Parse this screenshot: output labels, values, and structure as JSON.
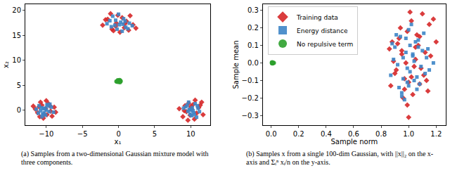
{
  "chart_data": [
    {
      "type": "scatter",
      "caption": "(a) Samples from a two-dimensional Gaussian mixture model with three components.",
      "x_label": "x₁",
      "y_label": "x₂",
      "xlim": [
        -12.9,
        12.7
      ],
      "ylim": [
        -3,
        21.2
      ],
      "xticks": [
        {
          "value": -10,
          "label": "−10"
        },
        {
          "value": -5,
          "label": "−5"
        },
        0,
        5,
        10
      ],
      "yticks": [
        0,
        5,
        10,
        15,
        20
      ],
      "grid": false,
      "series": [
        {
          "name": "Training data",
          "color": "#d62728",
          "marker": "diamond",
          "x": [
            -10.8,
            -9.5,
            -11.2,
            -10.1,
            -9.2,
            -10.6,
            -8.9,
            -11.5,
            -10.3,
            -9.7,
            -10.9,
            -9.4,
            -11.0,
            -10.0,
            -8.7,
            -10.4,
            -11.8,
            -9.9,
            -1.5,
            0.8,
            -0.3,
            1.6,
            -2.2,
            0.2,
            1.1,
            -0.9,
            2.0,
            -1.1,
            0.5,
            -0.4,
            1.4,
            -1.8,
            0.9,
            -0.1,
            2.4,
            -0.7,
            9.2,
            10.8,
            11.5,
            10.1,
            8.9,
            9.7,
            10.5,
            11.1,
            9.4,
            10.3,
            8.4,
            11.7,
            9.9,
            10.6,
            9.1,
            10.0,
            11.3,
            9.6
          ],
          "values": [
            1.6,
            0.9,
            -0.5,
            0.3,
            -1.2,
            1.0,
            0.6,
            0.2,
            -0.8,
            1.3,
            -1.3,
            -0.2,
            0.7,
            1.9,
            -0.4,
            -1.6,
            0.8,
            -0.9,
            18.2,
            16.5,
            17.4,
            18.9,
            17.0,
            15.6,
            17.8,
            16.2,
            17.1,
            19.3,
            18.5,
            16.8,
            16.0,
            18.1,
            17.3,
            19.0,
            16.4,
            15.9,
            0.9,
            -0.6,
            1.6,
            0.2,
            -1.3,
            1.4,
            -1.8,
            0.5,
            -0.3,
            1.1,
            0.3,
            -0.9,
            -1.0,
            2.0,
            -0.1,
            0.7,
            1.0,
            -2.0
          ]
        },
        {
          "name": "Energy distance",
          "color": "#3d85c6",
          "marker": "square",
          "x": [
            -10.2,
            -9.6,
            -11.0,
            -10.5,
            -9.3,
            -10.8,
            -9.9,
            -11.4,
            -10.1,
            -9.0,
            -10.7,
            -10.3,
            -9.5,
            -11.1,
            -10.0,
            -9.8,
            -10.6,
            -10.4,
            -0.5,
            0.3,
            1.0,
            -1.2,
            0.7,
            -0.2,
            1.5,
            -0.8,
            0.1,
            1.9,
            -1.6,
            0.5,
            -0.4,
            0.9,
            1.3,
            -1.0,
            0.0,
            0.6,
            9.8,
            10.4,
            9.3,
            10.9,
            10.1,
            9.6,
            11.2,
            10.6,
            9.0,
            10.2,
            9.9,
            10.8,
            9.5,
            10.3,
            11.0,
            9.7,
            10.5,
            10.0
          ],
          "values": [
            0.4,
            -0.3,
            0.9,
            -0.8,
            0.6,
            -0.1,
            1.1,
            0.2,
            -1.0,
            -0.4,
            0.5,
            -0.5,
            1.2,
            -0.6,
            0.0,
            0.8,
            -1.3,
            0.3,
            17.0,
            17.6,
            16.6,
            17.9,
            18.3,
            16.2,
            17.4,
            18.8,
            17.1,
            16.9,
            17.3,
            15.8,
            18.0,
            17.8,
            16.3,
            16.7,
            19.2,
            17.2,
            0.2,
            -0.5,
            0.7,
            0.9,
            -1.1,
            -0.2,
            -0.3,
            1.3,
            0.4,
            0.5,
            -0.8,
            -1.4,
            1.0,
            -0.1,
            0.4,
            1.6,
            -0.9,
            0.0
          ]
        },
        {
          "name": "No repulsive term",
          "color": "#2ca02c",
          "marker": "circle",
          "x": [
            -0.2,
            0.1,
            0.3,
            -0.1,
            0.2,
            0.0,
            -0.3,
            0.15,
            -0.05,
            0.25
          ],
          "values": [
            5.7,
            5.9,
            5.8,
            6.0,
            5.6,
            5.85,
            5.75,
            6.05,
            5.65,
            5.9
          ]
        }
      ]
    },
    {
      "type": "scatter",
      "caption": "(b) Samples x from a single 100-dim Gaussian, with ||x||₂ on the x-axis and Σᵢⁿ xᵢ/n on the y-axis.",
      "x_label": "Sample norm",
      "y_label": "Sample mean",
      "xlim": [
        -0.06,
        1.27
      ],
      "ylim": [
        -0.355,
        0.335
      ],
      "xticks": [
        {
          "value": 0,
          "label": "0.0"
        },
        0.2,
        0.4,
        0.6,
        0.8,
        {
          "value": 1,
          "label": "1.0"
        },
        1.2
      ],
      "yticks": [
        {
          "value": -0.3,
          "label": "−0.3"
        },
        {
          "value": -0.2,
          "label": "−0.2"
        },
        {
          "value": -0.1,
          "label": "−0.1"
        },
        {
          "value": 0,
          "label": "0.0"
        },
        0.1,
        0.2,
        0.3
      ],
      "grid": false,
      "legend": "upper left",
      "series": [
        {
          "name": "Training data",
          "color": "#d62728",
          "marker": "diamond",
          "x": [
            0.95,
            1.02,
            0.88,
            1.1,
            0.97,
            1.05,
            0.91,
            1.15,
            0.99,
            1.08,
            0.86,
            1.12,
            1.0,
            0.93,
            1.04,
            1.18,
            0.96,
            1.07,
            0.9,
            1.01,
            1.13,
            0.98,
            1.06,
            0.87,
            1.09,
            0.94,
            1.03,
            1.16,
            0.92,
            1.11,
            0.99,
            1.05,
            0.89,
            1.2,
            0.97,
            1.02,
            1.14,
            0.95,
            1.08,
            1.0
          ],
          "values": [
            0.05,
            -0.08,
            0.12,
            0.28,
            -0.15,
            0.02,
            -0.04,
            0.22,
            0.18,
            -0.12,
            0.08,
            0.06,
            -0.31,
            0.14,
            -0.02,
            0.25,
            -0.2,
            0.1,
            -0.06,
            0.29,
            -0.1,
            0.0,
            0.16,
            -0.13,
            -0.03,
            0.2,
            -0.18,
            0.04,
            0.11,
            -0.07,
            -0.24,
            0.09,
            0.01,
            0.12,
            -0.09,
            0.24,
            -0.16,
            0.07,
            0.15,
            -0.11
          ]
        },
        {
          "name": "Energy distance",
          "color": "#3d85c6",
          "marker": "square",
          "x": [
            0.96,
            1.01,
            0.9,
            1.07,
            0.99,
            1.04,
            0.93,
            1.11,
            0.98,
            1.06,
            0.88,
            1.09,
            1.0,
            0.95,
            1.03,
            1.14,
            0.97,
            1.05,
            0.92,
            1.02,
            1.12,
            0.94,
            1.08,
            0.89,
            1.1,
            0.96,
            1.01,
            1.15,
            0.91,
            1.06,
            0.99,
            1.03,
            0.87,
            1.18,
            0.98,
            1.04,
            1.13,
            0.95,
            1.07,
            1.0
          ],
          "values": [
            0.03,
            -0.05,
            0.09,
            0.13,
            -0.11,
            0.01,
            -0.14,
            0.17,
            0.06,
            -0.08,
            0.11,
            -0.02,
            0.19,
            -0.17,
            0.04,
            0.08,
            -0.21,
            0.12,
            -0.01,
            0.22,
            -0.06,
            0.15,
            -0.12,
            0.02,
            0.07,
            -0.09,
            0.1,
            -0.04,
            0.16,
            -0.15,
            -0.03,
            0.05,
            -0.07,
            0.0,
            0.14,
            -0.1,
            0.03,
            -0.19,
            0.09,
            -0.13
          ]
        },
        {
          "name": "No repulsive term",
          "color": "#2ca02c",
          "marker": "circle",
          "x": [
            0.005,
            0.01,
            0.015,
            0.008,
            0.012,
            0.02,
            0.006
          ],
          "values": [
            0.002,
            -0.003,
            0.001,
            0.004,
            -0.001,
            0.0,
            -0.002
          ]
        }
      ]
    }
  ]
}
